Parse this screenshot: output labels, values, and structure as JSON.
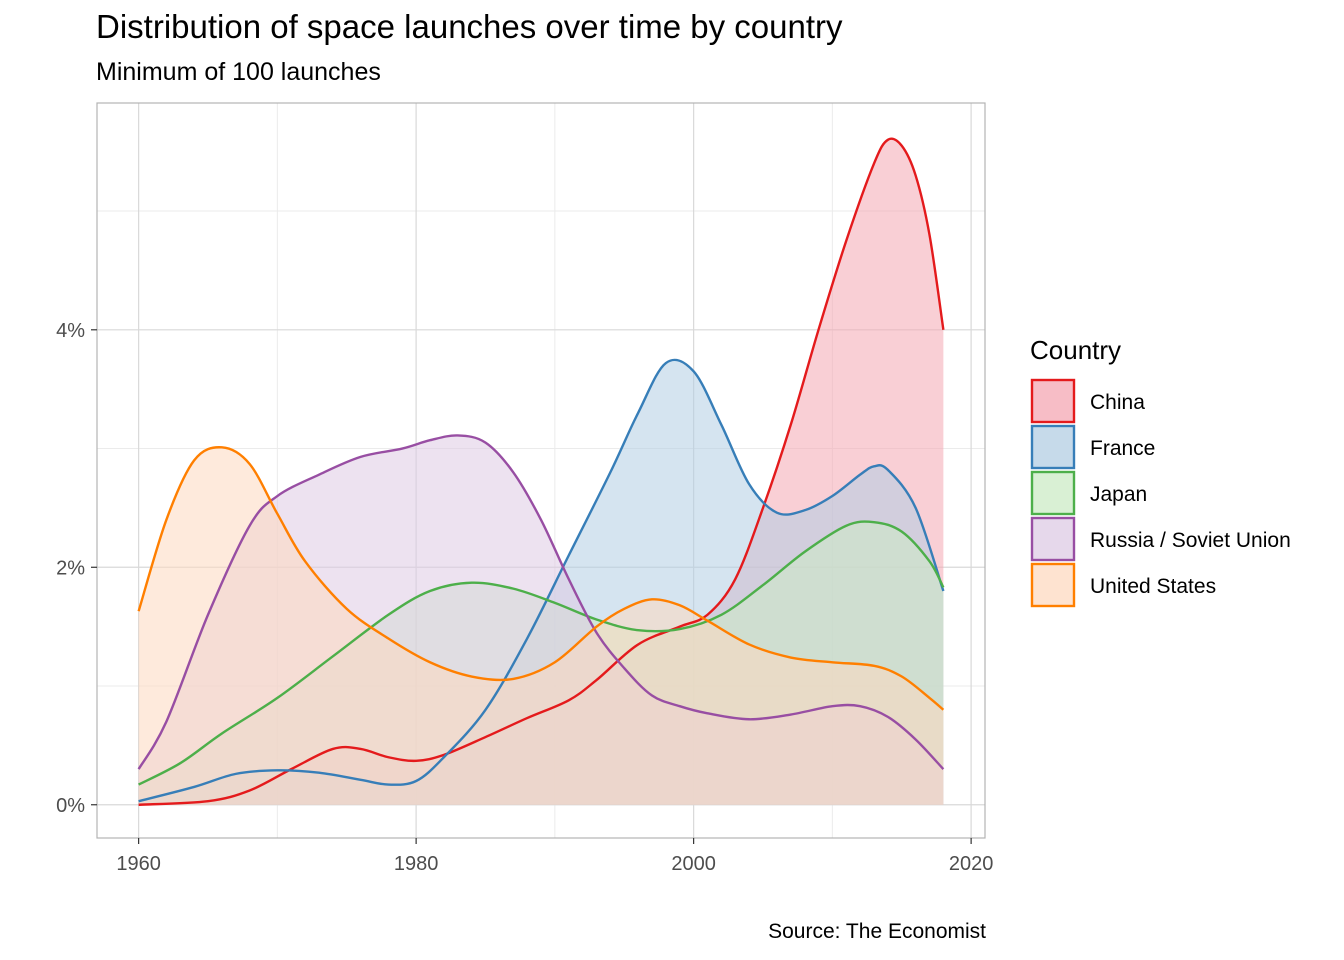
{
  "title": "Distribution of space launches over time by country",
  "subtitle": "Minimum of 100 launches",
  "caption": "Source: The Economist",
  "legend": {
    "title": "Country"
  },
  "chart_data": {
    "type": "area",
    "subtype": "density",
    "xlim": [
      1957,
      2021
    ],
    "ylim": [
      -0.0028,
      0.0591
    ],
    "x_ticks": [
      1960,
      1980,
      2000,
      2020
    ],
    "x_tick_labels": [
      "1960",
      "1980",
      "2000",
      "2020"
    ],
    "y_ticks": [
      0,
      0.02,
      0.04
    ],
    "y_tick_labels": [
      "0%",
      "2%",
      "4%"
    ],
    "y_minor_ticks": [
      0.01,
      0.03,
      0.05
    ],
    "x_minor_ticks": [
      1970,
      1990,
      2010
    ],
    "grid": true,
    "legend_position": "right",
    "series": [
      {
        "name": "China",
        "color": "#E41A1C",
        "fill": "#F4A7B3",
        "points": [
          [
            1960,
            0.0
          ],
          [
            1965,
            0.0003
          ],
          [
            1968,
            0.0012
          ],
          [
            1971,
            0.003
          ],
          [
            1974,
            0.0047
          ],
          [
            1976,
            0.0047
          ],
          [
            1978,
            0.004
          ],
          [
            1980,
            0.0037
          ],
          [
            1982,
            0.0042
          ],
          [
            1985,
            0.0057
          ],
          [
            1988,
            0.0073
          ],
          [
            1991,
            0.0088
          ],
          [
            1993,
            0.0105
          ],
          [
            1996,
            0.0135
          ],
          [
            1999,
            0.015
          ],
          [
            2001,
            0.016
          ],
          [
            2003,
            0.019
          ],
          [
            2005,
            0.025
          ],
          [
            2007,
            0.032
          ],
          [
            2009,
            0.04
          ],
          [
            2011,
            0.0475
          ],
          [
            2013,
            0.054
          ],
          [
            2014,
            0.056
          ],
          [
            2015,
            0.0555
          ],
          [
            2016,
            0.053
          ],
          [
            2017,
            0.048
          ],
          [
            2018,
            0.04
          ]
        ]
      },
      {
        "name": "France",
        "color": "#377EB8",
        "fill": "#B3CDE3",
        "points": [
          [
            1960,
            0.0003
          ],
          [
            1964,
            0.0015
          ],
          [
            1967,
            0.0026
          ],
          [
            1970,
            0.0029
          ],
          [
            1973,
            0.0027
          ],
          [
            1976,
            0.0021
          ],
          [
            1978,
            0.0017
          ],
          [
            1980,
            0.002
          ],
          [
            1982,
            0.004
          ],
          [
            1985,
            0.008
          ],
          [
            1988,
            0.014
          ],
          [
            1991,
            0.021
          ],
          [
            1994,
            0.028
          ],
          [
            1996,
            0.033
          ],
          [
            1998,
            0.0372
          ],
          [
            2000,
            0.0365
          ],
          [
            2002,
            0.032
          ],
          [
            2004,
            0.027
          ],
          [
            2006,
            0.0246
          ],
          [
            2008,
            0.0248
          ],
          [
            2010,
            0.026
          ],
          [
            2012,
            0.0278
          ],
          [
            2013,
            0.0285
          ],
          [
            2014,
            0.0282
          ],
          [
            2016,
            0.025
          ],
          [
            2018,
            0.018
          ]
        ]
      },
      {
        "name": "Japan",
        "color": "#4DAF4A",
        "fill": "#CCEBC5",
        "points": [
          [
            1960,
            0.0017
          ],
          [
            1963,
            0.0035
          ],
          [
            1966,
            0.006
          ],
          [
            1970,
            0.009
          ],
          [
            1974,
            0.0125
          ],
          [
            1978,
            0.016
          ],
          [
            1981,
            0.018
          ],
          [
            1984,
            0.0187
          ],
          [
            1987,
            0.0182
          ],
          [
            1990,
            0.017
          ],
          [
            1993,
            0.0156
          ],
          [
            1996,
            0.0147
          ],
          [
            1999,
            0.0148
          ],
          [
            2002,
            0.016
          ],
          [
            2005,
            0.0185
          ],
          [
            2008,
            0.0213
          ],
          [
            2011,
            0.0235
          ],
          [
            2013,
            0.0238
          ],
          [
            2015,
            0.023
          ],
          [
            2017,
            0.0205
          ],
          [
            2018,
            0.0183
          ]
        ]
      },
      {
        "name": "Russia / Soviet Union",
        "color": "#984EA3",
        "fill": "#DECBE4",
        "points": [
          [
            1960,
            0.003
          ],
          [
            1962,
            0.007
          ],
          [
            1965,
            0.016
          ],
          [
            1968,
            0.0235
          ],
          [
            1970,
            0.026
          ],
          [
            1973,
            0.0278
          ],
          [
            1976,
            0.0293
          ],
          [
            1979,
            0.03
          ],
          [
            1981,
            0.0307
          ],
          [
            1983,
            0.0311
          ],
          [
            1985,
            0.0305
          ],
          [
            1987,
            0.028
          ],
          [
            1989,
            0.024
          ],
          [
            1991,
            0.019
          ],
          [
            1993,
            0.0145
          ],
          [
            1995,
            0.0115
          ],
          [
            1997,
            0.0092
          ],
          [
            1999,
            0.0083
          ],
          [
            2001,
            0.0077
          ],
          [
            2004,
            0.0072
          ],
          [
            2007,
            0.0076
          ],
          [
            2010,
            0.0083
          ],
          [
            2012,
            0.0083
          ],
          [
            2014,
            0.0074
          ],
          [
            2016,
            0.0055
          ],
          [
            2018,
            0.003
          ]
        ]
      },
      {
        "name": "United States",
        "color": "#FF7F00",
        "fill": "#FED9C0",
        "points": [
          [
            1960,
            0.0163
          ],
          [
            1962,
            0.024
          ],
          [
            1964,
            0.029
          ],
          [
            1966,
            0.0301
          ],
          [
            1968,
            0.0287
          ],
          [
            1970,
            0.0245
          ],
          [
            1972,
            0.0205
          ],
          [
            1975,
            0.0165
          ],
          [
            1978,
            0.014
          ],
          [
            1981,
            0.012
          ],
          [
            1984,
            0.0108
          ],
          [
            1987,
            0.0106
          ],
          [
            1990,
            0.012
          ],
          [
            1993,
            0.015
          ],
          [
            1995,
            0.0165
          ],
          [
            1997,
            0.0173
          ],
          [
            1999,
            0.0168
          ],
          [
            2001,
            0.0155
          ],
          [
            2004,
            0.0135
          ],
          [
            2007,
            0.0124
          ],
          [
            2010,
            0.012
          ],
          [
            2013,
            0.0117
          ],
          [
            2015,
            0.0108
          ],
          [
            2017,
            0.009
          ],
          [
            2018,
            0.008
          ]
        ]
      }
    ]
  }
}
